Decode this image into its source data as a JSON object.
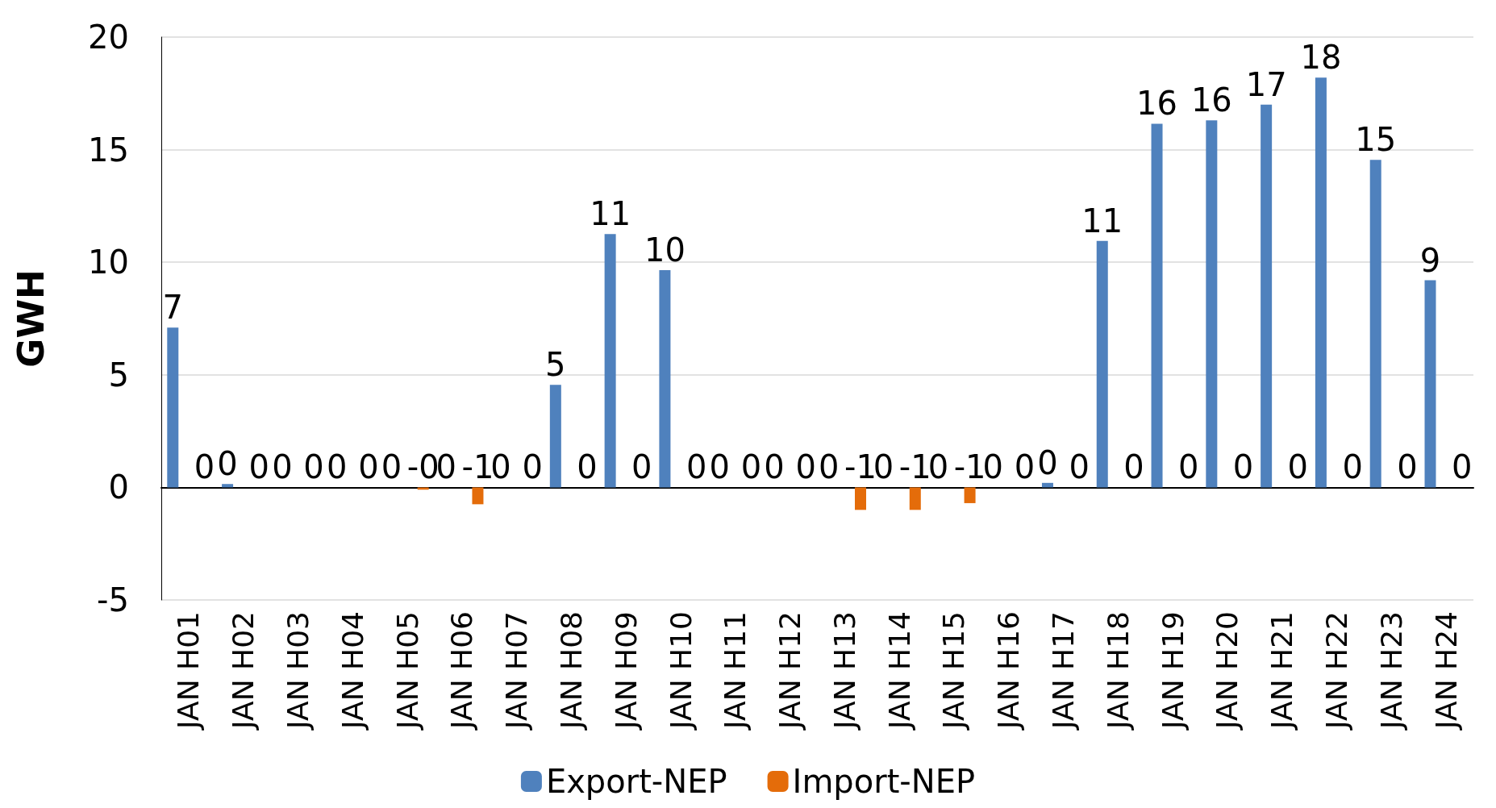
{
  "chart_data": {
    "type": "bar",
    "ylabel": "GWH",
    "categories": [
      "JAN H01",
      "JAN H02",
      "JAN H03",
      "JAN H04",
      "JAN H05",
      "JAN H06",
      "JAN H07",
      "JAN H08",
      "JAN H09",
      "JAN H10",
      "JAN H11",
      "JAN H12",
      "JAN H13",
      "JAN H14",
      "JAN H15",
      "JAN H16",
      "JAN H17",
      "JAN H18",
      "JAN H19",
      "JAN H20",
      "JAN H21",
      "JAN H22",
      "JAN H23",
      "JAN H24"
    ],
    "series": [
      {
        "name": "Export-NEP",
        "color": "#4f81bd",
        "values": [
          7.1,
          0.15,
          0,
          0,
          0,
          0,
          0,
          4.55,
          11.25,
          9.65,
          0,
          0,
          0,
          0,
          0,
          0,
          0.2,
          10.95,
          16.15,
          16.3,
          17.0,
          18.2,
          14.55,
          9.2
        ],
        "value_labels": [
          "7",
          "0",
          "0",
          "0",
          "0",
          "0",
          "0",
          "5",
          "11",
          "10",
          "0",
          "0",
          "0",
          "0",
          "0",
          "0",
          "0",
          "11",
          "16",
          "16",
          "17",
          "18",
          "15",
          "9"
        ]
      },
      {
        "name": "Import-NEP",
        "color": "#e46c0a",
        "values": [
          0,
          0,
          0,
          0,
          -0.1,
          -0.75,
          0,
          0,
          0,
          0,
          0,
          0,
          -1.0,
          -1.0,
          -0.7,
          0,
          0,
          0,
          0,
          0,
          0,
          0,
          0,
          0
        ],
        "value_labels": [
          "0",
          "0",
          "0",
          "0",
          "-0",
          "-1",
          "0",
          "0",
          "0",
          "0",
          "0",
          "0",
          "-1",
          "-1",
          "-1",
          "0",
          "0",
          "0",
          "0",
          "0",
          "0",
          "0",
          "0",
          "0"
        ]
      }
    ],
    "ylim": [
      -5,
      20
    ],
    "yticks": [
      -5,
      0,
      5,
      10,
      15,
      20
    ],
    "grid": "y",
    "legend": "bottom"
  }
}
